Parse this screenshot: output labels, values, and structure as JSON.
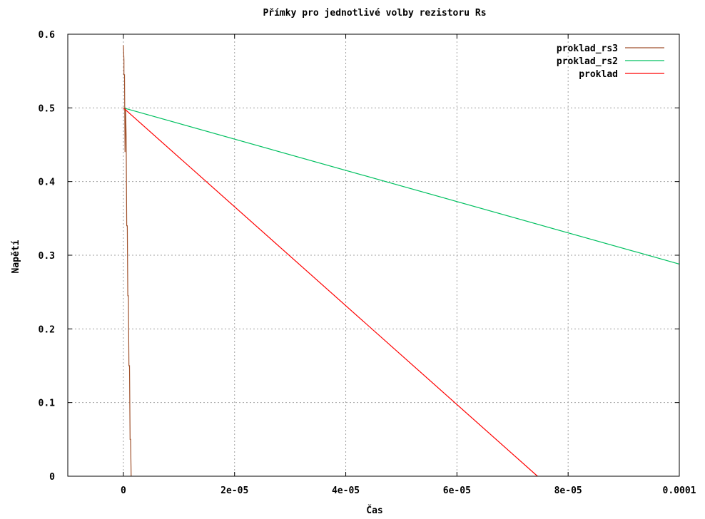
{
  "chart_data": {
    "type": "line",
    "title": "Přímky pro jednotlivé volby rezistoru Rs",
    "xlabel": "Čas",
    "ylabel": "Napětí",
    "xlim": [
      -1e-05,
      0.0001
    ],
    "ylim": [
      0,
      0.6
    ],
    "xticks": [
      0,
      2e-05,
      4e-05,
      6e-05,
      8e-05,
      0.0001
    ],
    "xtick_labels": [
      "0",
      "2e-05",
      "4e-05",
      "6e-05",
      "8e-05",
      "0.0001"
    ],
    "yticks": [
      0,
      0.1,
      0.2,
      0.3,
      0.4,
      0.5,
      0.6
    ],
    "ytick_labels": [
      "0",
      "0.1",
      "0.2",
      "0.3",
      "0.4",
      "0.5",
      "0.6"
    ],
    "grid": true,
    "legend_position": "top-right",
    "series": [
      {
        "name": "proklad_rs3",
        "color": "#a0522d",
        "points": [
          [
            0,
            0.585
          ],
          [
            1e-07,
            0.565
          ],
          [
            1e-07,
            0.545
          ],
          [
            2e-07,
            0.545
          ],
          [
            3e-07,
            0.44
          ],
          [
            4e-07,
            0.5
          ],
          [
            5e-07,
            0.46
          ],
          [
            6e-07,
            0.34
          ],
          [
            7e-07,
            0.34
          ],
          [
            8e-07,
            0.245
          ],
          [
            9e-07,
            0.245
          ],
          [
            1e-06,
            0.15
          ],
          [
            1.1e-06,
            0.15
          ],
          [
            1.2e-06,
            0.05
          ],
          [
            1.3e-06,
            0.05
          ],
          [
            1.4e-06,
            0
          ]
        ]
      },
      {
        "name": "proklad_rs2",
        "color": "#00c060",
        "points": [
          [
            0,
            0.5
          ],
          [
            0.0001,
            0.288
          ]
        ]
      },
      {
        "name": "proklad",
        "color": "#ff0000",
        "points": [
          [
            0,
            0.5
          ],
          [
            7.45e-05,
            0
          ]
        ]
      }
    ]
  }
}
